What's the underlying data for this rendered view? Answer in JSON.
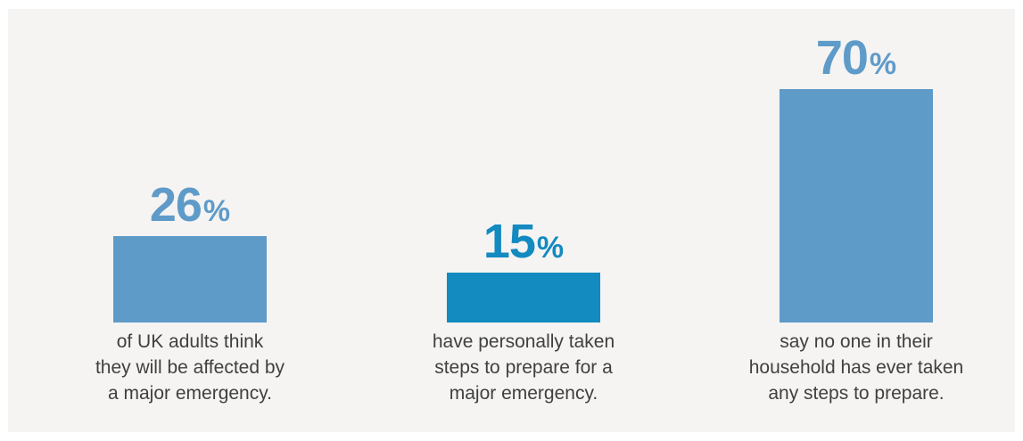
{
  "chart_data": {
    "type": "bar",
    "ylim": [
      0,
      70
    ],
    "categories": [
      "of UK adults think they will be affected by a major emergency.",
      "have personally taken steps to prepare for a major emergency.",
      "say no one in their household has ever taken any steps to prepare."
    ],
    "values": [
      26,
      15,
      70
    ],
    "unit": "%",
    "items": [
      {
        "value": 26,
        "value_label": "26",
        "unit_label": "%",
        "color": "#5f9bc9",
        "caption_lines": [
          "of UK adults think",
          "they will be affected by",
          "a major emergency."
        ]
      },
      {
        "value": 15,
        "value_label": "15",
        "unit_label": "%",
        "color": "#138ac0",
        "caption_lines": [
          "have personally taken",
          "steps to prepare for a",
          "major emergency."
        ]
      },
      {
        "value": 70,
        "value_label": "70",
        "unit_label": "%",
        "color": "#5f9bc9",
        "caption_lines": [
          "say no one in their",
          "household has ever taken",
          "any steps to prepare."
        ]
      }
    ]
  }
}
